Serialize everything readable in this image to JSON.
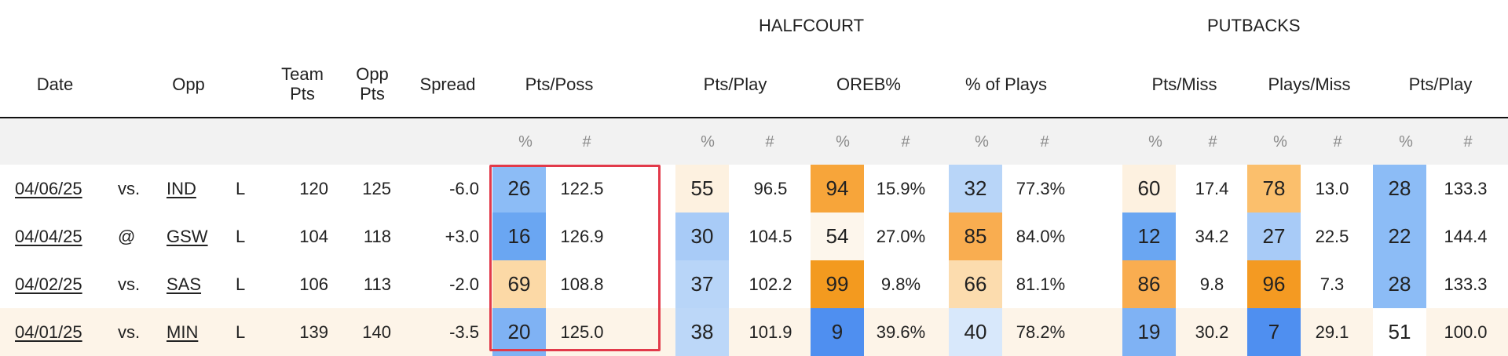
{
  "groups": {
    "halfcourt": "HALFCOURT",
    "putbacks": "PUTBACKS"
  },
  "headers": {
    "date": "Date",
    "opp": "Opp",
    "team_pts": [
      "Team",
      "Pts"
    ],
    "opp_pts": [
      "Opp",
      "Pts"
    ],
    "spread": "Spread",
    "pts_poss": "Pts/Poss",
    "hc_pts_play": "Pts/Play",
    "oreb": "OREB%",
    "pct_plays": "% of Plays",
    "pts_miss": "Pts/Miss",
    "plays_miss": "Plays/Miss",
    "pb_pts_play": "Pts/Play"
  },
  "subheaders": {
    "pct": "%",
    "num": "#"
  },
  "rows": [
    {
      "date": "04/06/25",
      "loc": "vs.",
      "opp": "IND",
      "result": "L",
      "team_pts": "120",
      "opp_pts": "125",
      "spread": "-6.0",
      "pts_poss": [
        "26",
        "122.5"
      ],
      "hc_pts_play": [
        "55",
        "96.5"
      ],
      "oreb": [
        "94",
        "15.9%"
      ],
      "pct_plays": [
        "32",
        "77.3%"
      ],
      "pts_miss": [
        "60",
        "17.4"
      ],
      "plays_miss": [
        "78",
        "13.0"
      ],
      "pb_pts_play": [
        "28",
        "133.3"
      ]
    },
    {
      "date": "04/04/25",
      "loc": "@",
      "opp": "GSW",
      "result": "L",
      "team_pts": "104",
      "opp_pts": "118",
      "spread": "+3.0",
      "pts_poss": [
        "16",
        "126.9"
      ],
      "hc_pts_play": [
        "30",
        "104.5"
      ],
      "oreb": [
        "54",
        "27.0%"
      ],
      "pct_plays": [
        "85",
        "84.0%"
      ],
      "pts_miss": [
        "12",
        "34.2"
      ],
      "plays_miss": [
        "27",
        "22.5"
      ],
      "pb_pts_play": [
        "22",
        "144.4"
      ]
    },
    {
      "date": "04/02/25",
      "loc": "vs.",
      "opp": "SAS",
      "result": "L",
      "team_pts": "106",
      "opp_pts": "113",
      "spread": "-2.0",
      "pts_poss": [
        "69",
        "108.8"
      ],
      "hc_pts_play": [
        "37",
        "102.2"
      ],
      "oreb": [
        "99",
        "9.8%"
      ],
      "pct_plays": [
        "66",
        "81.1%"
      ],
      "pts_miss": [
        "86",
        "9.8"
      ],
      "plays_miss": [
        "96",
        "7.3"
      ],
      "pb_pts_play": [
        "28",
        "133.3"
      ]
    },
    {
      "date": "04/01/25",
      "loc": "vs.",
      "opp": "MIN",
      "result": "L",
      "team_pts": "139",
      "opp_pts": "140",
      "spread": "-3.5",
      "pts_poss": [
        "20",
        "125.0"
      ],
      "hc_pts_play": [
        "38",
        "101.9"
      ],
      "oreb": [
        "9",
        "39.6%"
      ],
      "pct_plays": [
        "40",
        "78.2%"
      ],
      "pts_miss": [
        "19",
        "30.2"
      ],
      "plays_miss": [
        "7",
        "29.1"
      ],
      "pb_pts_play": [
        "51",
        "100.0"
      ]
    }
  ],
  "colors": {
    "blue_dark": "#6aa6f2",
    "blue_mid": "#8cbcf6",
    "blue_light": "#b8d5f8",
    "blue_pale": "#d8e8fb",
    "orange_dark": "#f7a53a",
    "orange_mid": "#fbbf6c",
    "orange_light": "#fcd9a6",
    "cream": "#fdf1e0",
    "neutral": "#ffffff",
    "highlight_border": "#e23a4a"
  }
}
